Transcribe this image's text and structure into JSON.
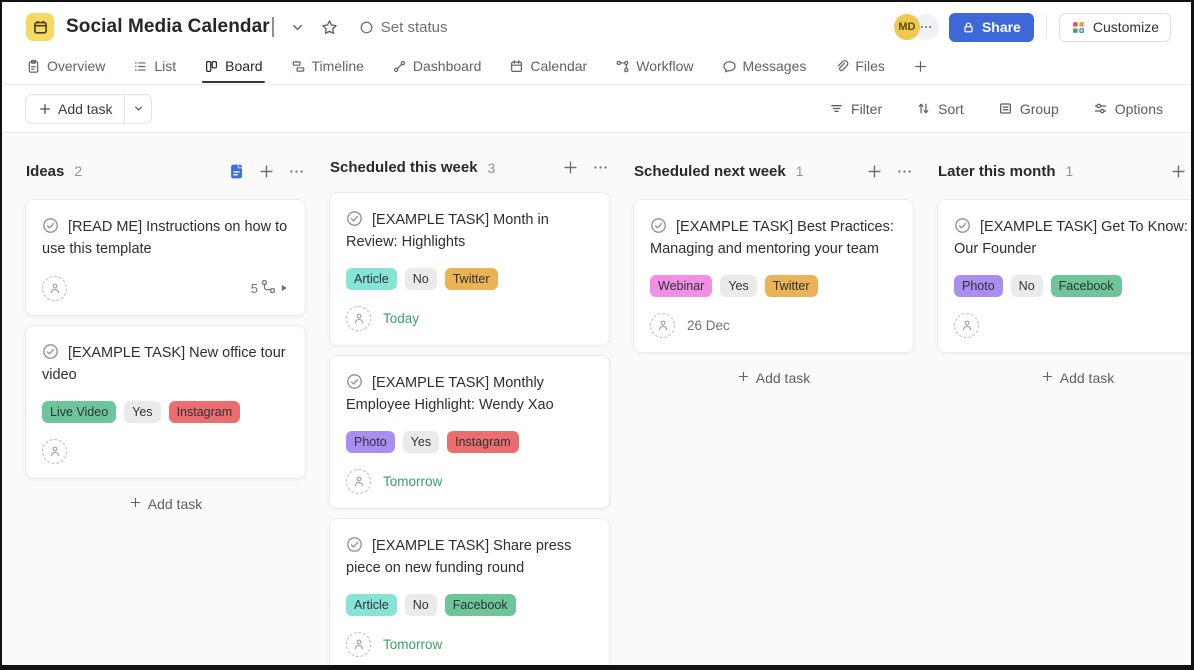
{
  "header": {
    "title": "Social Media Calendar",
    "set_status_label": "Set status",
    "avatar_initials": "MD",
    "share_label": "Share",
    "customize_label": "Customize"
  },
  "tabs": {
    "items": [
      {
        "label": "Overview",
        "icon": "clipboard-icon",
        "active": false
      },
      {
        "label": "List",
        "icon": "list-icon",
        "active": false
      },
      {
        "label": "Board",
        "icon": "board-icon",
        "active": true
      },
      {
        "label": "Timeline",
        "icon": "timeline-icon",
        "active": false
      },
      {
        "label": "Dashboard",
        "icon": "dashboard-icon",
        "active": false
      },
      {
        "label": "Calendar",
        "icon": "calendar-icon",
        "active": false
      },
      {
        "label": "Workflow",
        "icon": "workflow-icon",
        "active": false
      },
      {
        "label": "Messages",
        "icon": "messages-icon",
        "active": false
      },
      {
        "label": "Files",
        "icon": "files-icon",
        "active": false
      }
    ]
  },
  "toolbar": {
    "add_task_label": "Add task",
    "filter_label": "Filter",
    "sort_label": "Sort",
    "group_label": "Group",
    "options_label": "Options"
  },
  "board": {
    "column_add_task_label": "Add task",
    "columns": [
      {
        "name": "Ideas",
        "count": "2",
        "header_icons": [
          "doc-icon",
          "plus-icon",
          "ellipsis-icon"
        ],
        "show_add_task": true,
        "cards": [
          {
            "title": "[READ ME] Instructions on how to use this template",
            "tags": [],
            "assignee_placeholder": true,
            "subtask_count": "5"
          },
          {
            "title": "[EXAMPLE TASK] New office tour video",
            "tags": [
              {
                "label": "Live Video",
                "color": "green"
              },
              {
                "label": "Yes",
                "color": "gray"
              },
              {
                "label": "Instagram",
                "color": "red"
              }
            ],
            "assignee_placeholder": true
          }
        ]
      },
      {
        "name": "Scheduled this week",
        "count": "3",
        "header_icons": [
          "plus-icon",
          "ellipsis-icon"
        ],
        "show_add_task": false,
        "cards": [
          {
            "title": "[EXAMPLE TASK] Month in Review: Highlights",
            "tags": [
              {
                "label": "Article",
                "color": "teal"
              },
              {
                "label": "No",
                "color": "gray"
              },
              {
                "label": "Twitter",
                "color": "amber"
              }
            ],
            "assignee_placeholder": true,
            "due_date": {
              "text": "Today",
              "tone": "green"
            }
          },
          {
            "title": "[EXAMPLE TASK] Monthly Employee Highlight: Wendy Xao",
            "tags": [
              {
                "label": "Photo",
                "color": "purple"
              },
              {
                "label": "Yes",
                "color": "gray"
              },
              {
                "label": "Instagram",
                "color": "red"
              }
            ],
            "assignee_placeholder": true,
            "due_date": {
              "text": "Tomorrow",
              "tone": "green"
            }
          },
          {
            "title": "[EXAMPLE TASK] Share press piece on new funding round",
            "tags": [
              {
                "label": "Article",
                "color": "teal"
              },
              {
                "label": "No",
                "color": "gray"
              },
              {
                "label": "Facebook",
                "color": "green"
              }
            ],
            "assignee_placeholder": true,
            "due_date": {
              "text": "Tomorrow",
              "tone": "green"
            }
          }
        ]
      },
      {
        "name": "Scheduled next week",
        "count": "1",
        "header_icons": [
          "plus-icon",
          "ellipsis-icon"
        ],
        "show_add_task": true,
        "cards": [
          {
            "title": "[EXAMPLE TASK] Best Practices: Managing and mentoring your team",
            "tags": [
              {
                "label": "Webinar",
                "color": "pink"
              },
              {
                "label": "Yes",
                "color": "gray"
              },
              {
                "label": "Twitter",
                "color": "amber"
              }
            ],
            "assignee_placeholder": true,
            "due_date": {
              "text": "26 Dec",
              "tone": "gray"
            }
          }
        ]
      },
      {
        "name": "Later this month",
        "count": "1",
        "header_icons": [
          "plus-icon",
          "ellipsis-icon"
        ],
        "show_add_task": true,
        "cards": [
          {
            "title": "[EXAMPLE TASK] Get To Know: Our Founder",
            "tags": [
              {
                "label": "Photo",
                "color": "purple"
              },
              {
                "label": "No",
                "color": "gray"
              },
              {
                "label": "Facebook",
                "color": "green"
              }
            ],
            "assignee_placeholder": true
          }
        ]
      }
    ]
  },
  "colors": {
    "accent_blue": "#3e68d8",
    "tag_green": "#6ec597",
    "tag_gray": "#eaeaeb",
    "tag_red": "#ea6d70",
    "tag_teal": "#87e3d6",
    "tag_amber": "#eab355",
    "tag_purple": "#a98ef0",
    "tag_pink": "#f08fe3",
    "date_green": "#3e9d62",
    "date_gray": "#6b717b",
    "avatar_yellow": "#eec850",
    "app_icon_yellow": "#f6d963"
  }
}
